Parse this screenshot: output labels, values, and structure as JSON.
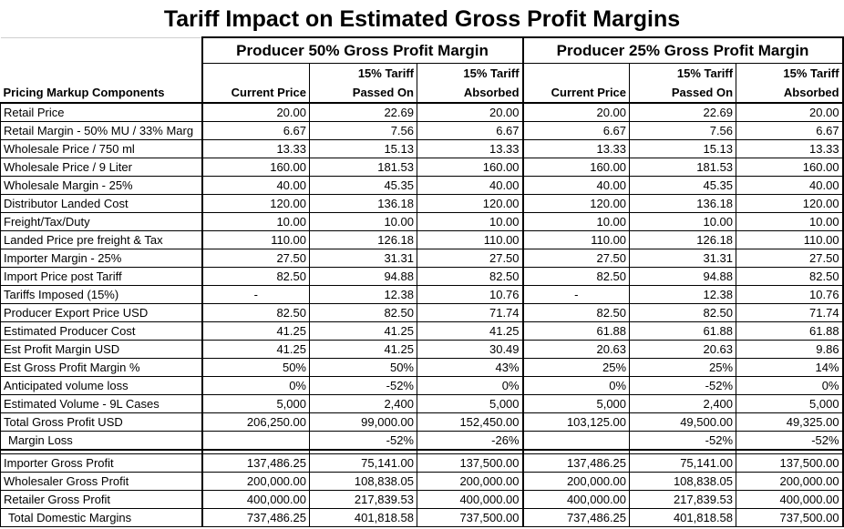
{
  "title": "Tariff Impact on Estimated Gross Profit Margins",
  "groups": [
    "Producer 50% Gross Profit Margin",
    "Producer 25% Gross Profit Margin"
  ],
  "row_header_label": "Pricing Markup Components",
  "column_headers": [
    {
      "line1": "",
      "line2": "Current Price"
    },
    {
      "line1": "15% Tariff",
      "line2": "Passed On"
    },
    {
      "line1": "15% Tariff",
      "line2": "Absorbed"
    },
    {
      "line1": "",
      "line2": "Current Price"
    },
    {
      "line1": "15% Tariff",
      "line2": "Passed On"
    },
    {
      "line1": "15% Tariff",
      "line2": "Absorbed"
    }
  ],
  "rows": [
    {
      "label": "Retail Price",
      "values": [
        "20.00",
        "22.69",
        "20.00",
        "20.00",
        "22.69",
        "20.00"
      ]
    },
    {
      "label": "Retail Margin - 50% MU / 33% Marg",
      "values": [
        "6.67",
        "7.56",
        "6.67",
        "6.67",
        "7.56",
        "6.67"
      ]
    },
    {
      "label": "Wholesale Price / 750 ml",
      "values": [
        "13.33",
        "15.13",
        "13.33",
        "13.33",
        "15.13",
        "13.33"
      ]
    },
    {
      "label": "Wholesale Price / 9 Liter",
      "values": [
        "160.00",
        "181.53",
        "160.00",
        "160.00",
        "181.53",
        "160.00"
      ]
    },
    {
      "label": "Wholesale Margin - 25%",
      "values": [
        "40.00",
        "45.35",
        "40.00",
        "40.00",
        "45.35",
        "40.00"
      ]
    },
    {
      "label": "Distributor Landed Cost",
      "values": [
        "120.00",
        "136.18",
        "120.00",
        "120.00",
        "136.18",
        "120.00"
      ]
    },
    {
      "label": "Freight/Tax/Duty",
      "values": [
        "10.00",
        "10.00",
        "10.00",
        "10.00",
        "10.00",
        "10.00"
      ]
    },
    {
      "label": "Landed Price pre freight & Tax",
      "values": [
        "110.00",
        "126.18",
        "110.00",
        "110.00",
        "126.18",
        "110.00"
      ]
    },
    {
      "label": "Importer Margin - 25%",
      "values": [
        "27.50",
        "31.31",
        "27.50",
        "27.50",
        "31.31",
        "27.50"
      ]
    },
    {
      "label": "Import Price post Tariff",
      "values": [
        "82.50",
        "94.88",
        "82.50",
        "82.50",
        "94.88",
        "82.50"
      ]
    },
    {
      "label": "Tariffs Imposed (15%)",
      "values": [
        "-",
        "12.38",
        "10.76",
        "-",
        "12.38",
        "10.76"
      ]
    },
    {
      "label": "Producer Export Price USD",
      "values": [
        "82.50",
        "82.50",
        "71.74",
        "82.50",
        "82.50",
        "71.74"
      ]
    },
    {
      "label": "Estimated Producer Cost",
      "values": [
        "41.25",
        "41.25",
        "41.25",
        "61.88",
        "61.88",
        "61.88"
      ]
    },
    {
      "label": "Est Profit Margin USD",
      "values": [
        "41.25",
        "41.25",
        "30.49",
        "20.63",
        "20.63",
        "9.86"
      ]
    },
    {
      "label": "Est Gross Profit Margin %",
      "values": [
        "50%",
        "50%",
        "43%",
        "25%",
        "25%",
        "14%"
      ]
    },
    {
      "label": "Anticipated volume loss",
      "values": [
        "0%",
        "-52%",
        "0%",
        "0%",
        "-52%",
        "0%"
      ]
    },
    {
      "label": "Estimated Volume - 9L Cases",
      "values": [
        "5,000",
        "2,400",
        "5,000",
        "5,000",
        "2,400",
        "5,000"
      ]
    },
    {
      "label": "Total Gross Profit USD",
      "values": [
        "206,250.00",
        "99,000.00",
        "152,450.00",
        "103,125.00",
        "49,500.00",
        "49,325.00"
      ]
    },
    {
      "label": "Margin Loss",
      "indent": true,
      "values": [
        "",
        "-52%",
        "-26%",
        "",
        "-52%",
        "-52%"
      ]
    }
  ],
  "summary_rows": [
    {
      "label": "Importer Gross Profit",
      "values": [
        "137,486.25",
        "75,141.00",
        "137,500.00",
        "137,486.25",
        "75,141.00",
        "137,500.00"
      ]
    },
    {
      "label": "Wholesaler Gross Profit",
      "values": [
        "200,000.00",
        "108,838.05",
        "200,000.00",
        "200,000.00",
        "108,838.05",
        "200,000.00"
      ]
    },
    {
      "label": "Retailer Gross Profit",
      "values": [
        "400,000.00",
        "217,839.53",
        "400,000.00",
        "400,000.00",
        "217,839.53",
        "400,000.00"
      ]
    },
    {
      "label": "Total Domestic Margins",
      "indent": true,
      "values": [
        "737,486.25",
        "401,818.58",
        "737,500.00",
        "737,486.25",
        "401,818.58",
        "737,500.00"
      ]
    }
  ]
}
